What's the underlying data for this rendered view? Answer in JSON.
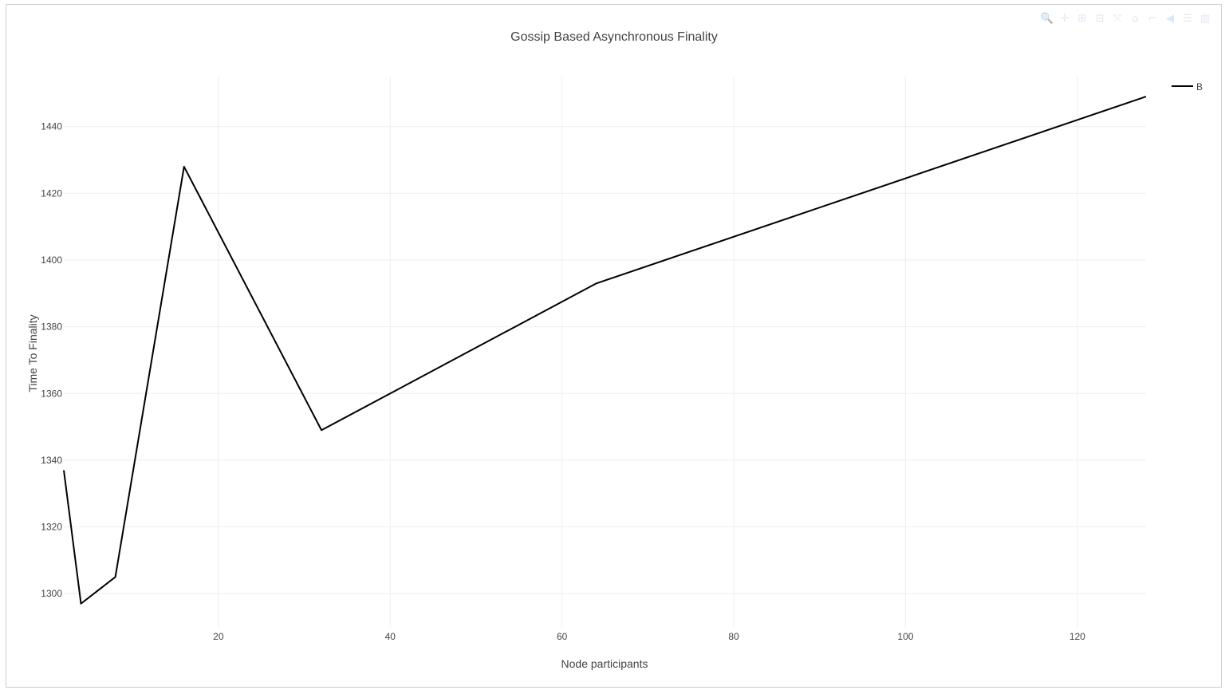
{
  "modebar": {
    "buttons": [
      {
        "name": "zoom-icon",
        "glyph": "🔍"
      },
      {
        "name": "pan-icon",
        "glyph": "✛"
      },
      {
        "name": "zoom-in-icon",
        "glyph": "⊞"
      },
      {
        "name": "zoom-out-icon",
        "glyph": "⊟"
      },
      {
        "name": "autoscale-icon",
        "glyph": "⤧"
      },
      {
        "name": "home-icon",
        "glyph": "⌂"
      },
      {
        "name": "spike-lines-icon",
        "glyph": "⌐"
      },
      {
        "name": "hover-closest-icon",
        "glyph": "◀"
      },
      {
        "name": "hover-compare-icon",
        "glyph": "☰"
      },
      {
        "name": "plotly-logo-icon",
        "glyph": "▥"
      }
    ]
  },
  "chart_data": {
    "type": "line",
    "title": "Gossip Based Asynchronous Finality",
    "xlabel": "Node participants",
    "ylabel": "Time To Finality",
    "xlim": [
      2,
      128
    ],
    "ylim": [
      1290,
      1455
    ],
    "xticks": [
      20,
      40,
      60,
      80,
      100,
      120
    ],
    "yticks": [
      1300,
      1320,
      1340,
      1360,
      1380,
      1400,
      1420,
      1440
    ],
    "grid": true,
    "legend_position": "top-right",
    "series": [
      {
        "name": "B",
        "color": "#000000",
        "x": [
          2,
          4,
          8,
          16,
          32,
          64,
          128
        ],
        "y": [
          1337,
          1297,
          1305,
          1428,
          1349,
          1393,
          1449
        ]
      }
    ]
  }
}
